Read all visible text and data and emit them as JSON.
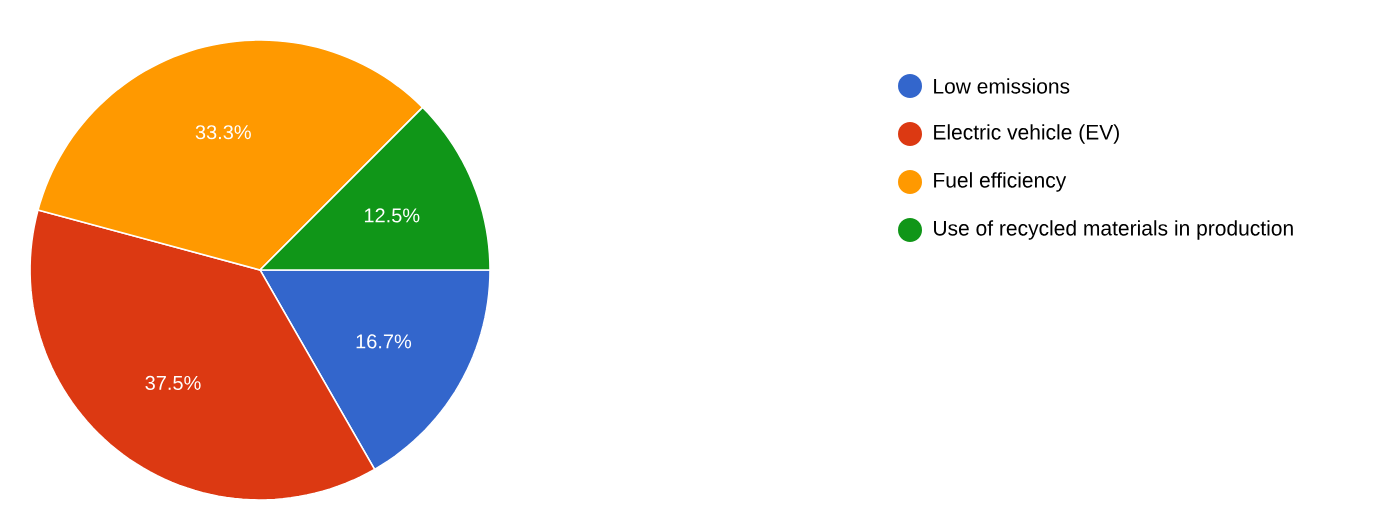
{
  "chart_data": {
    "type": "pie",
    "categories": [
      "Low emissions",
      "Electric vehicle (EV)",
      "Fuel efficiency",
      "Use of recycled materials in production"
    ],
    "values": [
      16.7,
      37.5,
      33.3,
      12.5
    ],
    "colors": [
      "#3366cc",
      "#dc3912",
      "#ff9900",
      "#109618"
    ],
    "value_labels": [
      "16.7%",
      "37.5%",
      "33.3%",
      "12.5%"
    ],
    "legend": "right"
  }
}
